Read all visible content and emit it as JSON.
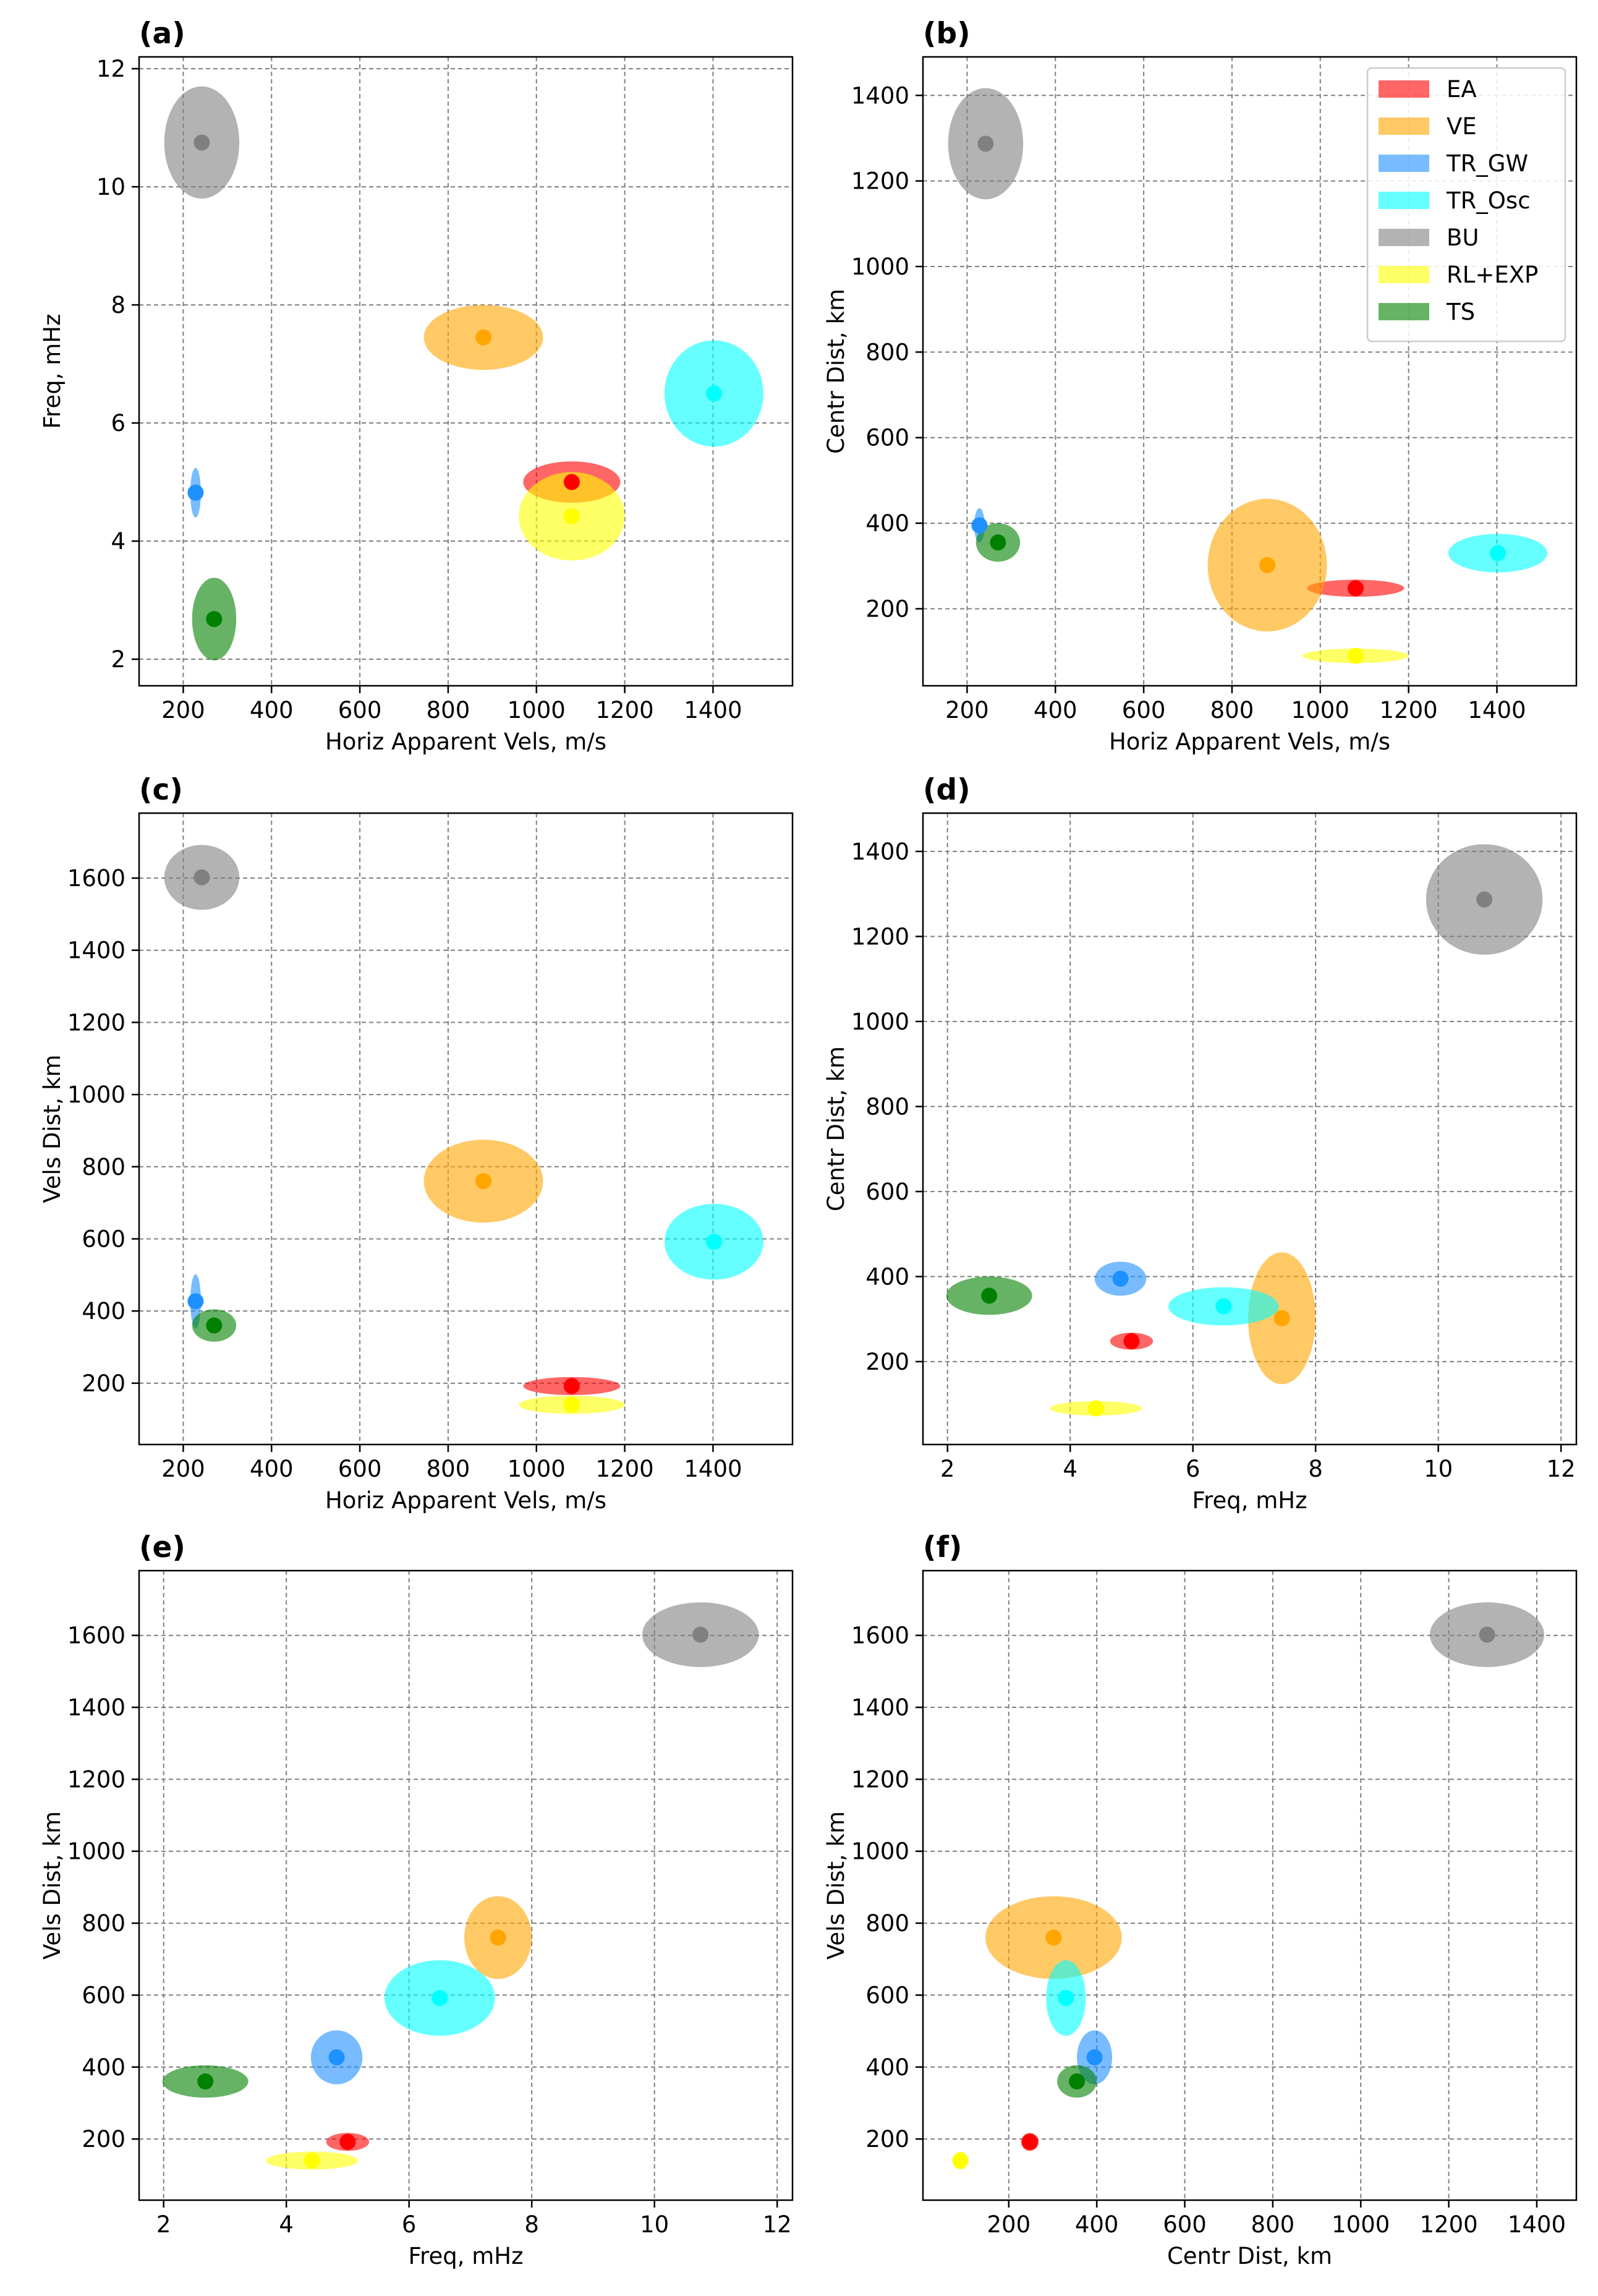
{
  "chart_data": {
    "type": "scatter",
    "legend": {
      "location": "upper right of panel (b)",
      "entries": [
        {
          "label": "EA",
          "color": "#ff0000"
        },
        {
          "label": "VE",
          "color": "#ffa500"
        },
        {
          "label": "TR_GW",
          "color": "#1e90ff"
        },
        {
          "label": "TR_Osc",
          "color": "#00ffff"
        },
        {
          "label": "BU",
          "color": "#808080"
        },
        {
          "label": "RL+EXP",
          "color": "#ffff00"
        },
        {
          "label": "TS",
          "color": "#008000"
        }
      ]
    },
    "categories": [
      {
        "label": "EA",
        "color": "#ff0000",
        "vel": 1080,
        "vel_spread": 110,
        "freq": 5.0,
        "freq_spread": 0.35,
        "centr": 248,
        "centr_spread": 20,
        "vdist": 192,
        "vdist_spread": 25
      },
      {
        "label": "VE",
        "color": "#ffa500",
        "vel": 880,
        "vel_spread": 135,
        "freq": 7.45,
        "freq_spread": 0.55,
        "centr": 302,
        "centr_spread": 155,
        "vdist": 760,
        "vdist_spread": 115
      },
      {
        "label": "TR_GW",
        "color": "#1e90ff",
        "vel": 228,
        "vel_spread": 12,
        "freq": 4.82,
        "freq_spread": 0.42,
        "centr": 395,
        "centr_spread": 40,
        "vdist": 427,
        "vdist_spread": 75
      },
      {
        "label": "TR_Osc",
        "color": "#00ffff",
        "vel": 1402,
        "vel_spread": 112,
        "freq": 6.5,
        "freq_spread": 0.9,
        "centr": 330,
        "centr_spread": 45,
        "vdist": 592,
        "vdist_spread": 105
      },
      {
        "label": "BU",
        "color": "#808080",
        "vel": 242,
        "vel_spread": 85,
        "freq": 10.75,
        "freq_spread": 0.95,
        "centr": 1287,
        "centr_spread": 130,
        "vdist": 1602,
        "vdist_spread": 90
      },
      {
        "label": "RL+EXP",
        "color": "#ffff00",
        "vel": 1080,
        "vel_spread": 120,
        "freq": 4.42,
        "freq_spread": 0.75,
        "centr": 90,
        "centr_spread": 17,
        "vdist": 140,
        "vdist_spread": 25
      },
      {
        "label": "TS",
        "color": "#008000",
        "vel": 270,
        "vel_spread": 50,
        "freq": 2.68,
        "freq_spread": 0.7,
        "centr": 355,
        "centr_spread": 45,
        "vdist": 360,
        "vdist_spread": 45
      }
    ],
    "panels": [
      {
        "label": "(a)",
        "x": "vel",
        "y": "freq",
        "xlabel": "Horiz Apparent Vels, m/s",
        "ylabel": "Freq, mHz",
        "xlim": [
          100,
          1580
        ],
        "ylim": [
          1.55,
          12.2
        ],
        "xticks": [
          200,
          400,
          600,
          800,
          1000,
          1200,
          1400
        ],
        "yticks": [
          2,
          4,
          6,
          8,
          10,
          12
        ],
        "grid": true
      },
      {
        "label": "(b)",
        "x": "vel",
        "y": "centr",
        "xlabel": "Horiz Apparent Vels, m/s",
        "ylabel": "Centr Dist, km",
        "xlim": [
          100,
          1580
        ],
        "ylim": [
          20,
          1490
        ],
        "xticks": [
          200,
          400,
          600,
          800,
          1000,
          1200,
          1400
        ],
        "yticks": [
          200,
          400,
          600,
          800,
          1000,
          1200,
          1400
        ],
        "grid": true
      },
      {
        "label": "(c)",
        "x": "vel",
        "y": "vdist",
        "xlabel": "Horiz Apparent Vels, m/s",
        "ylabel": "Vels Dist, km",
        "xlim": [
          100,
          1580
        ],
        "ylim": [
          30,
          1780
        ],
        "xticks": [
          200,
          400,
          600,
          800,
          1000,
          1200,
          1400
        ],
        "yticks": [
          200,
          400,
          600,
          800,
          1000,
          1200,
          1400,
          1600
        ],
        "grid": true
      },
      {
        "label": "(d)",
        "x": "freq",
        "y": "centr",
        "xlabel": "Freq, mHz",
        "ylabel": "Centr Dist, km",
        "xlim": [
          1.6,
          12.25
        ],
        "ylim": [
          5,
          1490
        ],
        "xticks": [
          2,
          4,
          6,
          8,
          10,
          12
        ],
        "yticks": [
          200,
          400,
          600,
          800,
          1000,
          1200,
          1400
        ],
        "grid": true
      },
      {
        "label": "(e)",
        "x": "freq",
        "y": "vdist",
        "xlabel": "Freq, mHz",
        "ylabel": "Vels Dist, km",
        "xlim": [
          1.6,
          12.25
        ],
        "ylim": [
          30,
          1780
        ],
        "xticks": [
          2,
          4,
          6,
          8,
          10,
          12
        ],
        "yticks": [
          200,
          400,
          600,
          800,
          1000,
          1200,
          1400,
          1600
        ],
        "grid": true
      },
      {
        "label": "(f)",
        "x": "centr",
        "y": "vdist",
        "xlabel": "Centr Dist, km",
        "ylabel": "Vels Dist, km",
        "xlim": [
          5,
          1490
        ],
        "ylim": [
          30,
          1780
        ],
        "xticks": [
          200,
          400,
          600,
          800,
          1000,
          1200,
          1400
        ],
        "yticks": [
          200,
          400,
          600,
          800,
          1000,
          1200,
          1400,
          1600
        ],
        "grid": true
      }
    ]
  }
}
